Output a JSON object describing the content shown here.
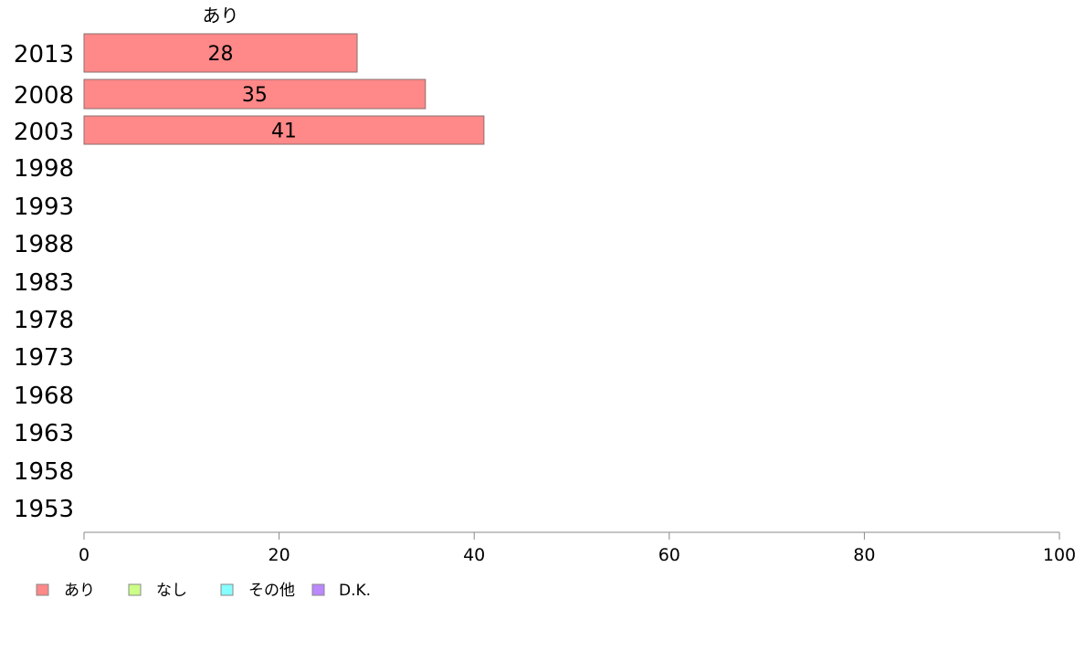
{
  "chart_data": {
    "type": "bar",
    "orientation": "horizontal",
    "stacked": true,
    "categories": [
      "2013",
      "2008",
      "2003",
      "1998",
      "1993",
      "1988",
      "1983",
      "1978",
      "1973",
      "1968",
      "1963",
      "1958",
      "1953"
    ],
    "series": [
      {
        "name": "あり",
        "color": "#ff8888",
        "values": [
          28,
          35,
          41,
          null,
          null,
          null,
          null,
          null,
          null,
          null,
          null,
          null,
          null
        ],
        "labels": [
          "28",
          "35",
          "41"
        ]
      },
      {
        "name": "なし",
        "color": "#ccff88",
        "values": [
          null,
          null,
          null,
          null,
          null,
          null,
          null,
          null,
          null,
          null,
          null,
          null,
          null
        ]
      },
      {
        "name": "その他",
        "color": "#88ffff",
        "values": [
          null,
          null,
          null,
          null,
          null,
          null,
          null,
          null,
          null,
          null,
          null,
          null,
          null
        ]
      },
      {
        "name": "D.K.",
        "color": "#bb88ff",
        "values": [
          null,
          null,
          null,
          null,
          null,
          null,
          null,
          null,
          null,
          null,
          null,
          null,
          null
        ]
      }
    ],
    "top_series_label": "あり",
    "xlim": [
      0,
      100
    ],
    "xticks": [
      "0",
      "20",
      "40",
      "60",
      "80",
      "100"
    ],
    "grid": false,
    "legend_position": "bottom-left"
  }
}
